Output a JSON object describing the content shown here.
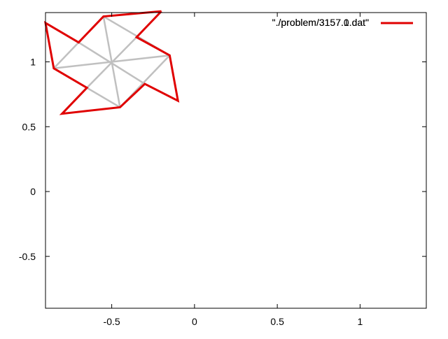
{
  "chart_data": {
    "type": "line",
    "title": "",
    "xlabel": "",
    "ylabel": "",
    "xlim": [
      -0.9,
      1.4
    ],
    "ylim": [
      -0.9,
      1.38
    ],
    "grid": false,
    "legend_position": "top-right",
    "x_ticks": [
      {
        "value": -0.5,
        "label": "-0.5"
      },
      {
        "value": 0,
        "label": "0"
      },
      {
        "value": 0.5,
        "label": "0.5"
      },
      {
        "value": 1,
        "label": "1"
      }
    ],
    "y_ticks": [
      {
        "value": -0.5,
        "label": "-0.5"
      },
      {
        "value": 0,
        "label": "0"
      },
      {
        "value": 0.5,
        "label": "0.5"
      },
      {
        "value": 1,
        "label": "1"
      }
    ],
    "series": [
      {
        "name": "\"./problem/3157.1.dat\"",
        "color": "#e00000",
        "shown_in_legend": false,
        "points": [
          [
            -0.2,
            1.39
          ],
          [
            -0.35,
            1.19
          ],
          [
            -0.15,
            1.05
          ],
          [
            -0.1,
            0.7
          ],
          [
            -0.3,
            0.83
          ],
          [
            -0.45,
            0.65
          ],
          [
            -0.8,
            0.6
          ],
          [
            -0.65,
            0.8
          ],
          [
            -0.85,
            0.95
          ],
          [
            -0.9,
            1.3
          ],
          [
            -0.7,
            1.15
          ],
          [
            -0.55,
            1.35
          ],
          [
            -0.2,
            1.39
          ]
        ]
      },
      {
        "name": "\"./problem/3157.0.dat\"",
        "color": "#e00000",
        "shown_in_legend": true,
        "points": []
      }
    ],
    "helper_segments": {
      "color": "#c0c0c0",
      "segments": [
        [
          [
            -0.55,
            1.35
          ],
          [
            -0.45,
            0.65
          ]
        ],
        [
          [
            -0.85,
            0.95
          ],
          [
            -0.15,
            1.05
          ]
        ],
        [
          [
            -0.7,
            1.15
          ],
          [
            -0.3,
            0.83
          ]
        ],
        [
          [
            -0.35,
            1.19
          ],
          [
            -0.65,
            0.8
          ]
        ],
        [
          [
            -0.55,
            1.35
          ],
          [
            -0.85,
            0.95
          ]
        ],
        [
          [
            -0.85,
            0.95
          ],
          [
            -0.45,
            0.65
          ]
        ],
        [
          [
            -0.45,
            0.65
          ],
          [
            -0.15,
            1.05
          ]
        ],
        [
          [
            -0.15,
            1.05
          ],
          [
            -0.55,
            1.35
          ]
        ]
      ]
    }
  }
}
